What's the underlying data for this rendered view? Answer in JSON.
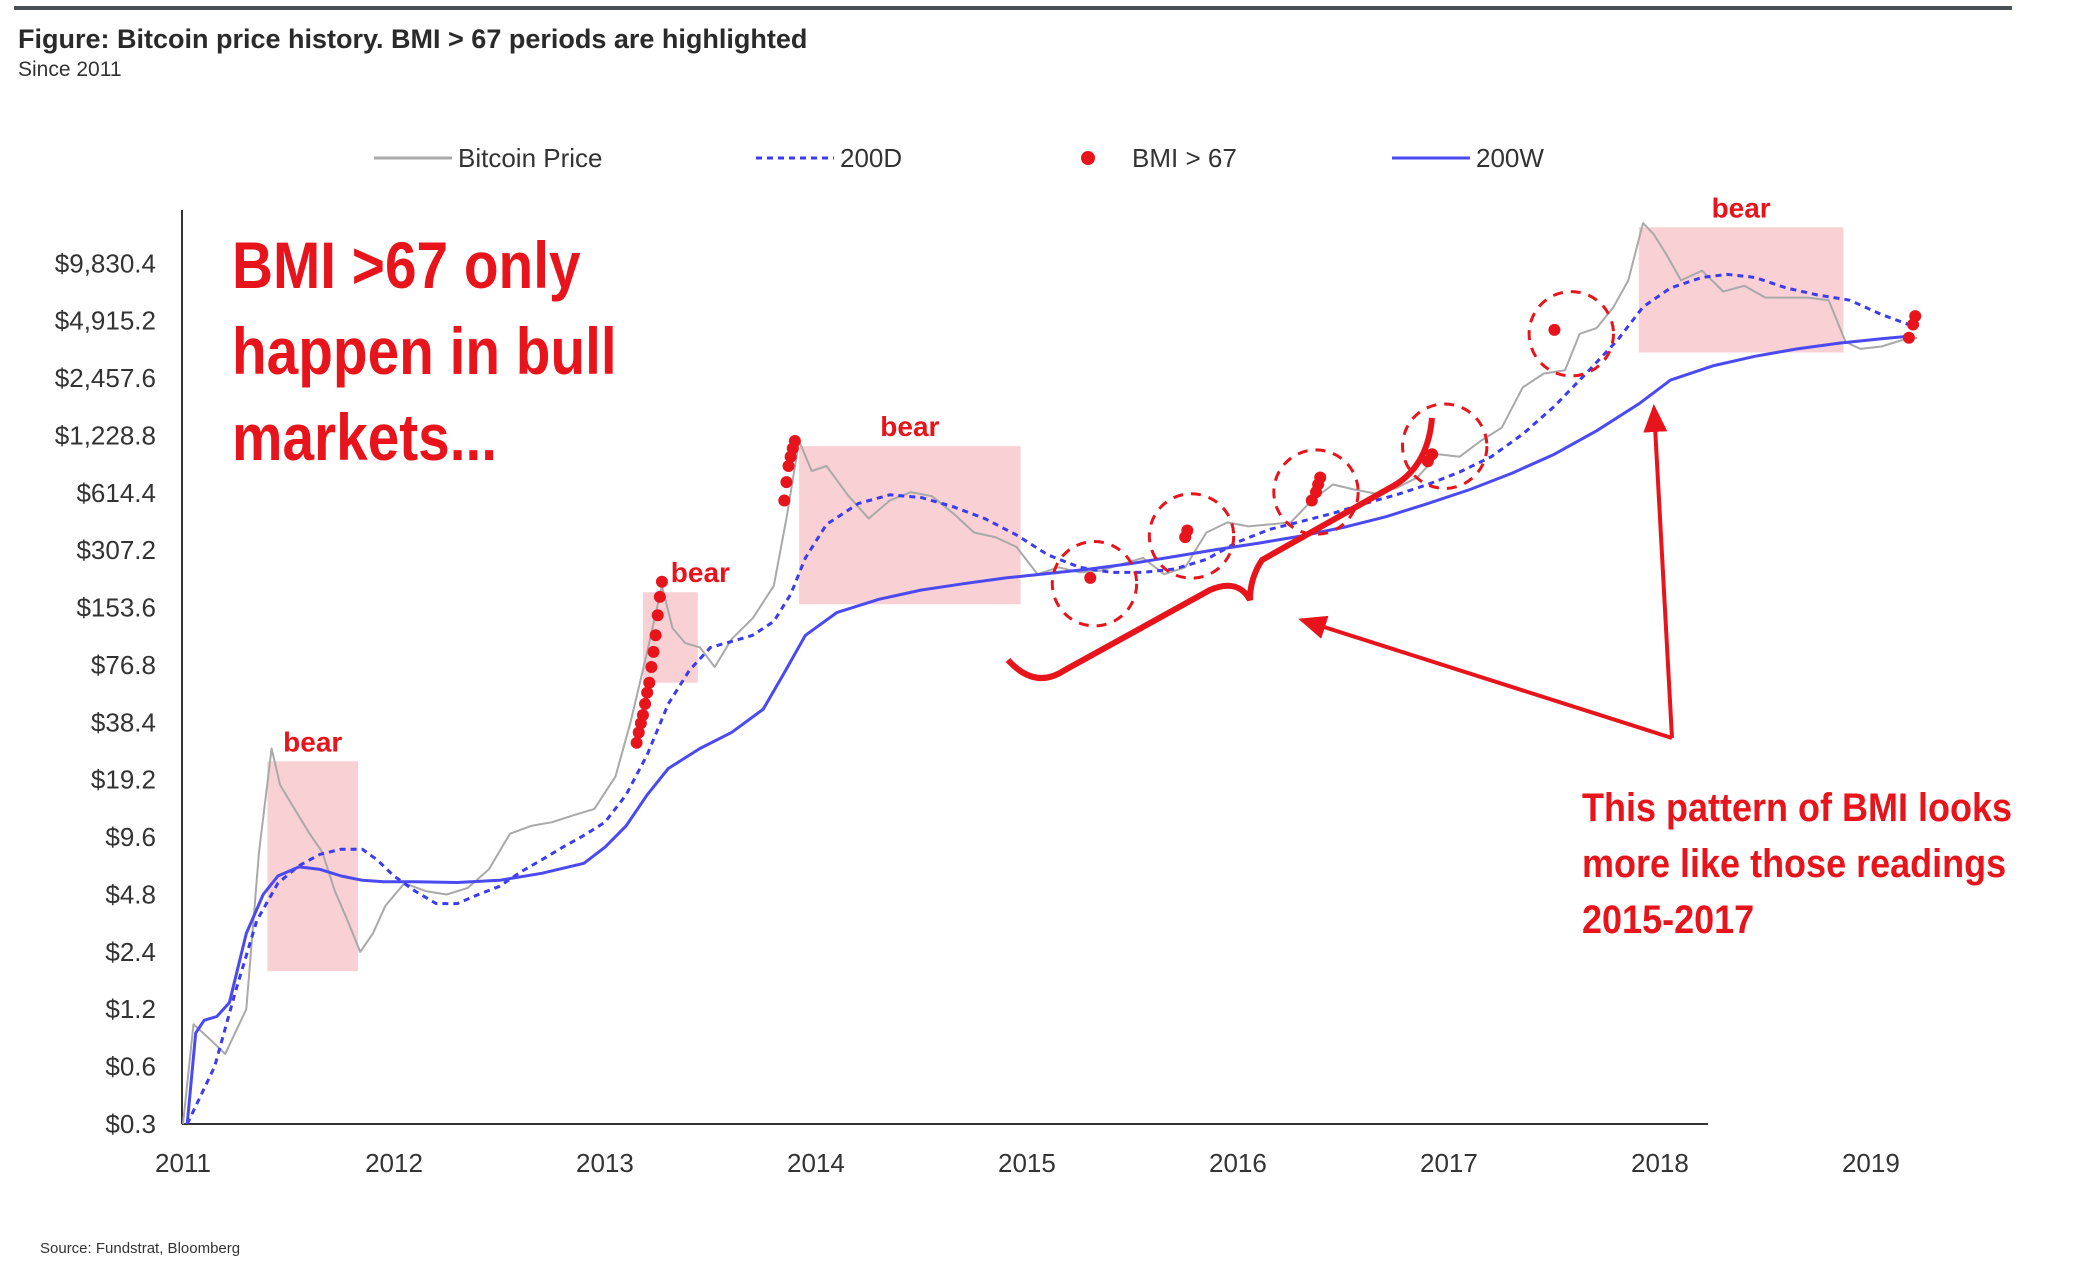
{
  "figure": {
    "title": "Figure: Bitcoin price history. BMI > 67 periods are highlighted",
    "subtitle": "Since 2011",
    "source": "Source: Fundstrat, Bloomberg"
  },
  "annotations": {
    "main_lines": [
      "BMI >67 only",
      "happen in bull",
      "markets..."
    ],
    "side_lines": [
      "This pattern of BMI looks",
      "more like those readings",
      "2015-2017"
    ]
  },
  "colors": {
    "price": "#a9a9a9",
    "ma200d": "#3b3bf0",
    "ma200w": "#4a4af0",
    "bmi": "#e8141c",
    "bear_fill": "#f8c8cb",
    "annotation": "#e8141c"
  },
  "chart_data": {
    "type": "line",
    "title": "",
    "xlabel": "",
    "ylabel": "",
    "y_scale": "log",
    "ylim": [
      0.3,
      19660
    ],
    "xlim": [
      2011.0,
      2019.5
    ],
    "x_ticks": [
      "2011",
      "2012",
      "2013",
      "2014",
      "2015",
      "2016",
      "2017",
      "2018",
      "2019"
    ],
    "y_ticks": [
      0.3,
      0.6,
      1.2,
      2.4,
      4.8,
      9.6,
      19.2,
      38.4,
      76.8,
      153.6,
      307.2,
      614.4,
      1228.8,
      2457.6,
      4915.2,
      9830.4
    ],
    "y_tick_labels": [
      "$0.3",
      "$0.6",
      "$1.2",
      "$2.4",
      "$4.8",
      "$9.6",
      "$19.2",
      "$38.4",
      "$76.8",
      "$153.6",
      "$307.2",
      "$614.4",
      "$1,228.8",
      "$2,457.6",
      "$4,915.2",
      "$9,830.4"
    ],
    "legend": [
      "Bitcoin Price",
      "200D",
      "BMI > 67",
      "200W"
    ],
    "legend_position": "top",
    "series": [
      {
        "name": "Bitcoin Price",
        "style": "solid-thin-gray",
        "points": [
          [
            2011.0,
            0.3
          ],
          [
            2011.05,
            1.0
          ],
          [
            2011.12,
            0.85
          ],
          [
            2011.2,
            0.7
          ],
          [
            2011.3,
            1.2
          ],
          [
            2011.36,
            8
          ],
          [
            2011.42,
            28
          ],
          [
            2011.46,
            18
          ],
          [
            2011.52,
            14
          ],
          [
            2011.6,
            10
          ],
          [
            2011.66,
            8
          ],
          [
            2011.72,
            5
          ],
          [
            2011.78,
            3.5
          ],
          [
            2011.84,
            2.4
          ],
          [
            2011.9,
            3
          ],
          [
            2011.96,
            4.2
          ],
          [
            2012.05,
            5.5
          ],
          [
            2012.15,
            5
          ],
          [
            2012.25,
            4.8
          ],
          [
            2012.35,
            5.2
          ],
          [
            2012.45,
            6.5
          ],
          [
            2012.55,
            10
          ],
          [
            2012.65,
            11
          ],
          [
            2012.75,
            11.5
          ],
          [
            2012.85,
            12.5
          ],
          [
            2012.95,
            13.5
          ],
          [
            2013.05,
            20
          ],
          [
            2013.12,
            38
          ],
          [
            2013.2,
            90
          ],
          [
            2013.27,
            200
          ],
          [
            2013.32,
            120
          ],
          [
            2013.38,
            100
          ],
          [
            2013.45,
            95
          ],
          [
            2013.52,
            75
          ],
          [
            2013.6,
            105
          ],
          [
            2013.7,
            135
          ],
          [
            2013.8,
            200
          ],
          [
            2013.86,
            450
          ],
          [
            2013.92,
            1150
          ],
          [
            2013.98,
            800
          ],
          [
            2014.05,
            850
          ],
          [
            2014.15,
            600
          ],
          [
            2014.25,
            450
          ],
          [
            2014.35,
            560
          ],
          [
            2014.45,
            620
          ],
          [
            2014.55,
            590
          ],
          [
            2014.65,
            480
          ],
          [
            2014.75,
            380
          ],
          [
            2014.85,
            360
          ],
          [
            2014.95,
            320
          ],
          [
            2015.05,
            230
          ],
          [
            2015.15,
            250
          ],
          [
            2015.25,
            235
          ],
          [
            2015.35,
            240
          ],
          [
            2015.45,
            260
          ],
          [
            2015.55,
            280
          ],
          [
            2015.65,
            230
          ],
          [
            2015.75,
            250
          ],
          [
            2015.85,
            380
          ],
          [
            2015.95,
            430
          ],
          [
            2016.05,
            410
          ],
          [
            2016.15,
            420
          ],
          [
            2016.25,
            430
          ],
          [
            2016.35,
            560
          ],
          [
            2016.45,
            680
          ],
          [
            2016.55,
            640
          ],
          [
            2016.65,
            610
          ],
          [
            2016.75,
            650
          ],
          [
            2016.85,
            740
          ],
          [
            2016.95,
            980
          ],
          [
            2017.05,
            950
          ],
          [
            2017.15,
            1150
          ],
          [
            2017.25,
            1350
          ],
          [
            2017.35,
            2200
          ],
          [
            2017.45,
            2600
          ],
          [
            2017.55,
            2700
          ],
          [
            2017.62,
            4200
          ],
          [
            2017.7,
            4500
          ],
          [
            2017.78,
            5800
          ],
          [
            2017.85,
            8000
          ],
          [
            2017.92,
            16000
          ],
          [
            2017.97,
            14000
          ],
          [
            2018.03,
            11000
          ],
          [
            2018.1,
            8000
          ],
          [
            2018.2,
            9000
          ],
          [
            2018.3,
            7000
          ],
          [
            2018.4,
            7500
          ],
          [
            2018.5,
            6500
          ],
          [
            2018.6,
            6500
          ],
          [
            2018.7,
            6500
          ],
          [
            2018.8,
            6300
          ],
          [
            2018.88,
            3800
          ],
          [
            2018.95,
            3500
          ],
          [
            2019.05,
            3600
          ],
          [
            2019.15,
            3900
          ],
          [
            2019.22,
            4000
          ]
        ]
      },
      {
        "name": "200D",
        "style": "dashed-blue",
        "points": [
          [
            2011.02,
            0.3
          ],
          [
            2011.15,
            0.6
          ],
          [
            2011.25,
            1.5
          ],
          [
            2011.35,
            3.5
          ],
          [
            2011.45,
            5.5
          ],
          [
            2011.55,
            6.8
          ],
          [
            2011.65,
            7.8
          ],
          [
            2011.75,
            8.3
          ],
          [
            2011.85,
            8.3
          ],
          [
            2011.92,
            7.3
          ],
          [
            2012.0,
            6
          ],
          [
            2012.1,
            5
          ],
          [
            2012.2,
            4.3
          ],
          [
            2012.3,
            4.3
          ],
          [
            2012.4,
            4.8
          ],
          [
            2012.5,
            5.3
          ],
          [
            2012.6,
            6.3
          ],
          [
            2012.7,
            7.3
          ],
          [
            2012.8,
            8.5
          ],
          [
            2012.9,
            9.8
          ],
          [
            2013.0,
            11.5
          ],
          [
            2013.1,
            16
          ],
          [
            2013.2,
            26
          ],
          [
            2013.3,
            48
          ],
          [
            2013.4,
            72
          ],
          [
            2013.5,
            95
          ],
          [
            2013.6,
            102
          ],
          [
            2013.7,
            110
          ],
          [
            2013.8,
            130
          ],
          [
            2013.88,
            180
          ],
          [
            2013.95,
            280
          ],
          [
            2014.05,
            420
          ],
          [
            2014.2,
            540
          ],
          [
            2014.35,
            600
          ],
          [
            2014.5,
            580
          ],
          [
            2014.65,
            520
          ],
          [
            2014.8,
            450
          ],
          [
            2014.95,
            370
          ],
          [
            2015.1,
            290
          ],
          [
            2015.25,
            250
          ],
          [
            2015.4,
            235
          ],
          [
            2015.55,
            235
          ],
          [
            2015.7,
            245
          ],
          [
            2015.85,
            275
          ],
          [
            2016.0,
            340
          ],
          [
            2016.15,
            395
          ],
          [
            2016.3,
            435
          ],
          [
            2016.45,
            480
          ],
          [
            2016.6,
            540
          ],
          [
            2016.75,
            600
          ],
          [
            2016.9,
            680
          ],
          [
            2017.05,
            790
          ],
          [
            2017.2,
            950
          ],
          [
            2017.35,
            1250
          ],
          [
            2017.5,
            1750
          ],
          [
            2017.65,
            2600
          ],
          [
            2017.8,
            3900
          ],
          [
            2017.92,
            5800
          ],
          [
            2018.05,
            7300
          ],
          [
            2018.2,
            8300
          ],
          [
            2018.32,
            8600
          ],
          [
            2018.45,
            8300
          ],
          [
            2018.6,
            7300
          ],
          [
            2018.75,
            6700
          ],
          [
            2018.9,
            6300
          ],
          [
            2019.05,
            5300
          ],
          [
            2019.2,
            4600
          ]
        ]
      },
      {
        "name": "200W",
        "style": "solid-blue",
        "points": [
          [
            2011.02,
            0.3
          ],
          [
            2011.06,
            0.9
          ],
          [
            2011.1,
            1.05
          ],
          [
            2011.16,
            1.1
          ],
          [
            2011.22,
            1.3
          ],
          [
            2011.3,
            3.0
          ],
          [
            2011.38,
            4.8
          ],
          [
            2011.45,
            6.0
          ],
          [
            2011.55,
            6.7
          ],
          [
            2011.65,
            6.5
          ],
          [
            2011.75,
            6.0
          ],
          [
            2011.85,
            5.7
          ],
          [
            2011.95,
            5.6
          ],
          [
            2012.1,
            5.6
          ],
          [
            2012.3,
            5.55
          ],
          [
            2012.5,
            5.7
          ],
          [
            2012.7,
            6.2
          ],
          [
            2012.9,
            7.0
          ],
          [
            2013.0,
            8.5
          ],
          [
            2013.1,
            11
          ],
          [
            2013.2,
            16
          ],
          [
            2013.3,
            22
          ],
          [
            2013.45,
            28
          ],
          [
            2013.6,
            34
          ],
          [
            2013.75,
            45
          ],
          [
            2013.85,
            70
          ],
          [
            2013.95,
            110
          ],
          [
            2014.1,
            145
          ],
          [
            2014.3,
            170
          ],
          [
            2014.5,
            190
          ],
          [
            2014.7,
            205
          ],
          [
            2014.9,
            220
          ],
          [
            2015.1,
            232
          ],
          [
            2015.3,
            245
          ],
          [
            2015.5,
            262
          ],
          [
            2015.7,
            285
          ],
          [
            2015.9,
            310
          ],
          [
            2016.1,
            335
          ],
          [
            2016.3,
            365
          ],
          [
            2016.5,
            405
          ],
          [
            2016.7,
            460
          ],
          [
            2016.9,
            540
          ],
          [
            2017.1,
            640
          ],
          [
            2017.3,
            780
          ],
          [
            2017.5,
            980
          ],
          [
            2017.7,
            1300
          ],
          [
            2017.9,
            1800
          ],
          [
            2018.05,
            2400
          ],
          [
            2018.25,
            2850
          ],
          [
            2018.45,
            3200
          ],
          [
            2018.65,
            3500
          ],
          [
            2018.85,
            3750
          ],
          [
            2019.05,
            3950
          ],
          [
            2019.2,
            4100
          ]
        ]
      }
    ],
    "bmi_points": [
      [
        2013.15,
        30
      ],
      [
        2013.16,
        34
      ],
      [
        2013.17,
        38
      ],
      [
        2013.18,
        42
      ],
      [
        2013.19,
        48
      ],
      [
        2013.2,
        55
      ],
      [
        2013.21,
        62
      ],
      [
        2013.22,
        75
      ],
      [
        2013.23,
        90
      ],
      [
        2013.24,
        110
      ],
      [
        2013.25,
        140
      ],
      [
        2013.26,
        175
      ],
      [
        2013.27,
        210
      ],
      [
        2013.85,
        560
      ],
      [
        2013.86,
        700
      ],
      [
        2013.87,
        850
      ],
      [
        2013.88,
        950
      ],
      [
        2013.89,
        1050
      ],
      [
        2013.9,
        1150
      ],
      [
        2015.3,
        220
      ],
      [
        2015.75,
        360
      ],
      [
        2015.76,
        390
      ],
      [
        2016.35,
        560
      ],
      [
        2016.37,
        620
      ],
      [
        2016.38,
        680
      ],
      [
        2016.39,
        740
      ],
      [
        2016.9,
        900
      ],
      [
        2016.92,
        980
      ],
      [
        2017.5,
        4400
      ],
      [
        2019.18,
        4000
      ],
      [
        2019.2,
        4700
      ],
      [
        2019.21,
        5200
      ]
    ],
    "bear_periods": [
      {
        "label": "bear",
        "x": [
          2011.4,
          2011.83
        ],
        "y": [
          1.9,
          24
        ]
      },
      {
        "label": "bear",
        "x": [
          2013.18,
          2013.44
        ],
        "y": [
          62,
          185
        ]
      },
      {
        "label": "bear",
        "x": [
          2013.92,
          2014.97
        ],
        "y": [
          160,
          1080
        ]
      },
      {
        "label": "bear",
        "x": [
          2017.9,
          2018.87
        ],
        "y": [
          3350,
          15200
        ]
      }
    ],
    "highlight_circles": [
      {
        "x": 2015.32,
        "y": 205,
        "rx": 0.2
      },
      {
        "x": 2015.78,
        "y": 365,
        "rx": 0.2
      },
      {
        "x": 2016.37,
        "y": 620,
        "rx": 0.2
      },
      {
        "x": 2016.98,
        "y": 1080,
        "rx": 0.2
      },
      {
        "x": 2017.58,
        "y": 4200,
        "rx": 0.2
      }
    ]
  }
}
